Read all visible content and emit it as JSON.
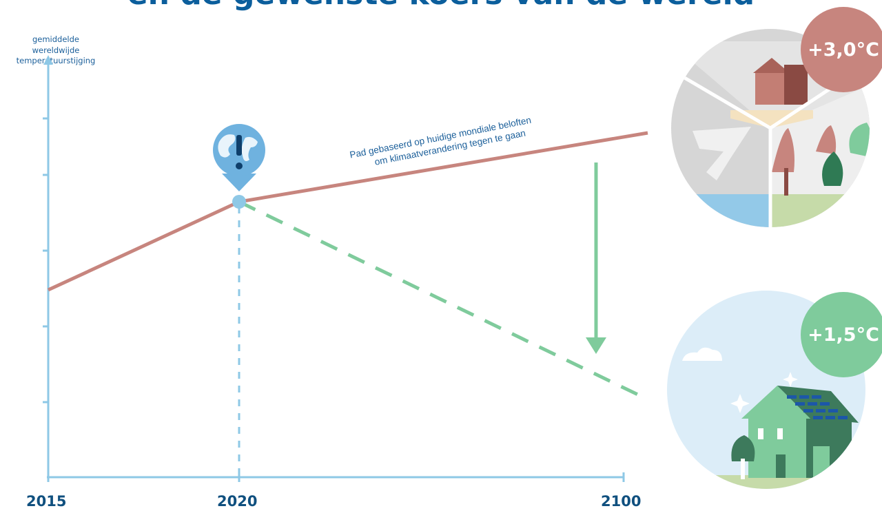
{
  "title": "en de gewenste koers van de wereld",
  "colors": {
    "axis": "#8ec8e6",
    "current_path": "#c7857e",
    "target_path": "#7fcb9c",
    "title": "#0b5e9c"
  },
  "chart_data": {
    "type": "line",
    "ylabel": [
      "gemiddelde",
      "wereldwijde",
      "temperatuurstijging"
    ],
    "x_ticks": [
      "2015",
      "2020",
      "2100"
    ],
    "series": [
      {
        "name": "Pad gebaseerd op huidige mondiale beloften om klimaatverandering tegen te gaan",
        "style": "solid",
        "color": "#c7857e",
        "points": [
          [
            2015,
            1.1
          ],
          [
            2020,
            1.5
          ],
          [
            2100,
            3.0
          ]
        ]
      },
      {
        "style": "dashed",
        "color": "#7fcb9c",
        "points": [
          [
            2020,
            1.5
          ],
          [
            2100,
            1.5
          ]
        ]
      }
    ],
    "annotation_lines": [
      "Pad gebaseerd op huidige mondiale  beloften",
      "om klimaatverandering tegen te gaan"
    ],
    "scenario_labels": {
      "high": "+3,0°C",
      "low": "+1,5°C"
    },
    "markers": {
      "alert_icon": "globe-exclamation-icon"
    }
  }
}
